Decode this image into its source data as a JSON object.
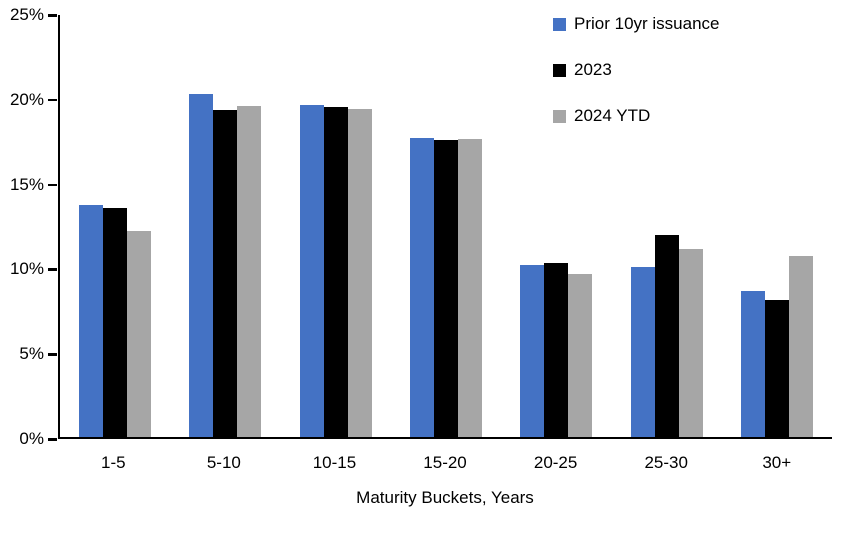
{
  "chart_data": {
    "type": "bar",
    "title": "",
    "xlabel": "Maturity Buckets, Years",
    "ylabel": "",
    "categories": [
      "1-5",
      "5-10",
      "10-15",
      "15-20",
      "20-25",
      "25-30",
      "30+"
    ],
    "series": [
      {
        "name": "Prior 10yr issuance",
        "color": "#4472C4",
        "values": [
          13.7,
          20.25,
          19.6,
          17.65,
          10.15,
          10.05,
          8.6
        ]
      },
      {
        "name": "2023",
        "color": "#000000",
        "values": [
          13.5,
          19.3,
          19.45,
          17.5,
          10.25,
          11.9,
          8.1
        ]
      },
      {
        "name": "2024 YTD",
        "color": "#A6A6A6",
        "values": [
          12.15,
          19.5,
          19.35,
          17.6,
          9.6,
          11.1,
          10.7
        ]
      }
    ],
    "ylim": [
      0,
      25
    ],
    "yticks": [
      0,
      5,
      10,
      15,
      20,
      25
    ],
    "ytick_labels": [
      "0%",
      "5%",
      "10%",
      "15%",
      "20%",
      "25%"
    ],
    "grid": false,
    "legend_position": "top-right",
    "bar_unit": "percent"
  },
  "colors": {
    "axis": "#000000",
    "background": "#FFFFFF"
  }
}
